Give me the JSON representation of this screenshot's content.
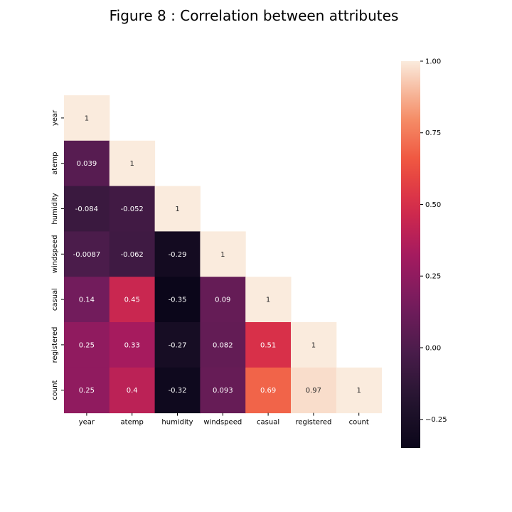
{
  "chart_data": {
    "type": "heatmap",
    "title": "Figure 8 : Correlation between attributes",
    "variables": [
      "year",
      "atemp",
      "humidity",
      "windspeed",
      "casual",
      "registered",
      "count"
    ],
    "mask": "upper-triangle",
    "matrix": [
      [
        1,
        null,
        null,
        null,
        null,
        null,
        null
      ],
      [
        0.039,
        1,
        null,
        null,
        null,
        null,
        null
      ],
      [
        -0.084,
        -0.052,
        1,
        null,
        null,
        null,
        null
      ],
      [
        -0.0087,
        -0.062,
        -0.29,
        1,
        null,
        null,
        null
      ],
      [
        0.14,
        0.45,
        -0.35,
        0.09,
        1,
        null,
        null
      ],
      [
        0.25,
        0.33,
        -0.27,
        0.082,
        0.51,
        1,
        null
      ],
      [
        0.25,
        0.4,
        -0.32,
        0.093,
        0.69,
        0.97,
        1
      ]
    ],
    "colorbar": {
      "colormap": "rocket",
      "range": [
        -0.35,
        1.0
      ],
      "ticks": [
        1.0,
        0.75,
        0.5,
        0.25,
        0.0,
        -0.25
      ],
      "tick_labels": [
        "1.00",
        "0.75",
        "0.50",
        "0.25",
        "0.00",
        "−0.25"
      ],
      "placement": "right"
    },
    "grid": false
  }
}
